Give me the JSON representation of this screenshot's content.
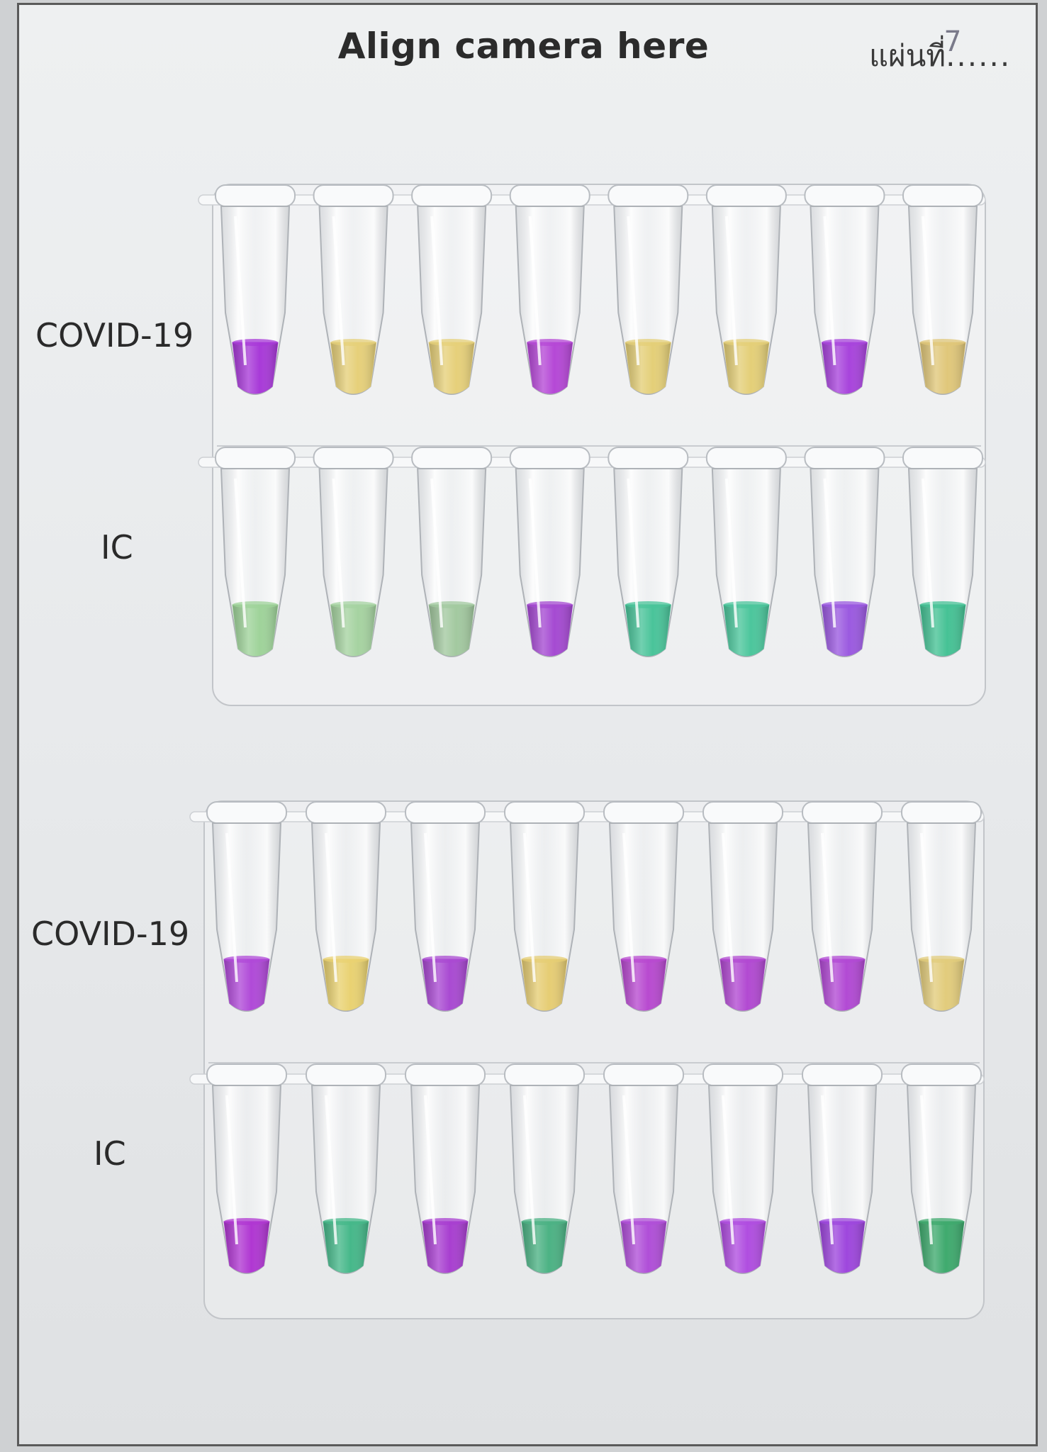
{
  "header": {
    "title": "Align camera here",
    "sheet_label": "แผ่นที่",
    "sheet_number": "7",
    "sheet_dots": "......"
  },
  "panels": [
    {
      "rows": [
        {
          "label": "COVID-19",
          "tube_colors": [
            "#a83ad8",
            "#e6d07a",
            "#e6d07a",
            "#b548d6",
            "#e4cf78",
            "#e4cf78",
            "#a844dc",
            "#e0c77a"
          ]
        },
        {
          "label": "IC",
          "tube_colors": [
            "#9fd39a",
            "#a6d3a1",
            "#a3c9a0",
            "#a54ad2",
            "#4ac49a",
            "#4cc69c",
            "#9b5ae0",
            "#46c295"
          ]
        }
      ]
    },
    {
      "rows": [
        {
          "label": "COVID-19",
          "tube_colors": [
            "#b04ad8",
            "#e9d272",
            "#a94ad2",
            "#e6cd74",
            "#b84ad0",
            "#b24ad2",
            "#b24ad4",
            "#e2cc7c"
          ]
        },
        {
          "label": "IC",
          "tube_colors": [
            "#b037d2",
            "#46b88a",
            "#a83fd0",
            "#4cb284",
            "#b04fd8",
            "#b04ee0",
            "#9e47dd",
            "#3faa6e"
          ]
        }
      ]
    }
  ],
  "colors": {
    "purple": "#a83ad8",
    "yellow": "#e6d07a",
    "green": "#4ac49a"
  }
}
